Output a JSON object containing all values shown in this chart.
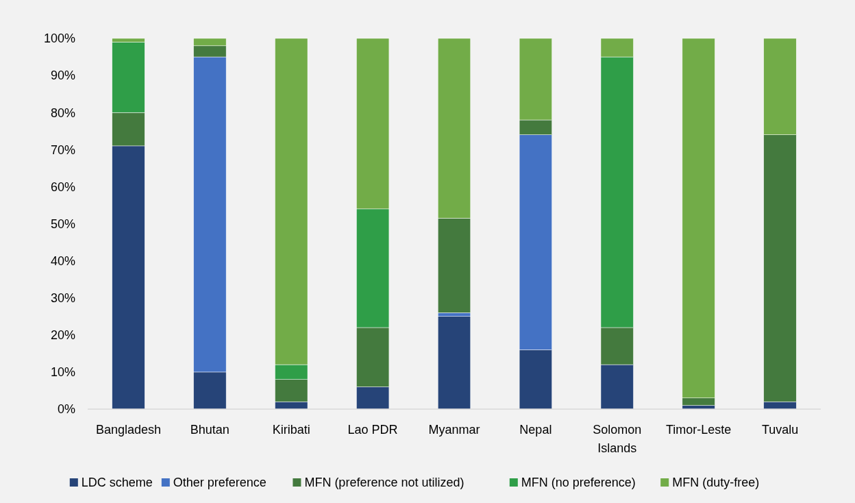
{
  "chart_data": {
    "type": "bar",
    "stacked": true,
    "categories": [
      "Bangladesh",
      "Bhutan",
      "Kiribati",
      "Lao PDR",
      "Myanmar",
      "Nepal",
      "Solomon Islands",
      "Timor-Leste",
      "Tuvalu"
    ],
    "series": [
      {
        "name": "LDC scheme",
        "color": "#264478",
        "values": [
          71,
          10,
          2,
          6,
          25,
          16,
          12,
          1,
          2
        ]
      },
      {
        "name": "Other preference",
        "color": "#4472c4",
        "values": [
          0,
          85,
          0,
          0,
          1,
          58,
          0,
          0,
          0
        ]
      },
      {
        "name": "MFN (preference not utilized)",
        "color": "#447a3e",
        "values": [
          9,
          3,
          6,
          16,
          25.5,
          4,
          10,
          2,
          72
        ]
      },
      {
        "name": "MFN (no preference)",
        "color": "#2f9e48",
        "values": [
          19,
          0,
          4,
          32,
          0,
          0,
          73,
          0,
          0
        ]
      },
      {
        "name": "MFN (duty-free)",
        "color": "#72ac48",
        "values": [
          1,
          2,
          88,
          46,
          48.5,
          22,
          5,
          97,
          26
        ]
      }
    ],
    "ylim": [
      0,
      100
    ],
    "yticks": [
      {
        "value": 0,
        "label": "0%"
      },
      {
        "value": 10,
        "label": "10%"
      },
      {
        "value": 20,
        "label": "20%"
      },
      {
        "value": 30,
        "label": "30%"
      },
      {
        "value": 40,
        "label": "40%"
      },
      {
        "value": 50,
        "label": "50%"
      },
      {
        "value": 60,
        "label": "60%"
      },
      {
        "value": 70,
        "label": "70%"
      },
      {
        "value": 80,
        "label": "80%"
      },
      {
        "value": 90,
        "label": "90%"
      },
      {
        "value": 100,
        "label": "100%"
      }
    ],
    "grid": false,
    "legend": "bottom"
  }
}
